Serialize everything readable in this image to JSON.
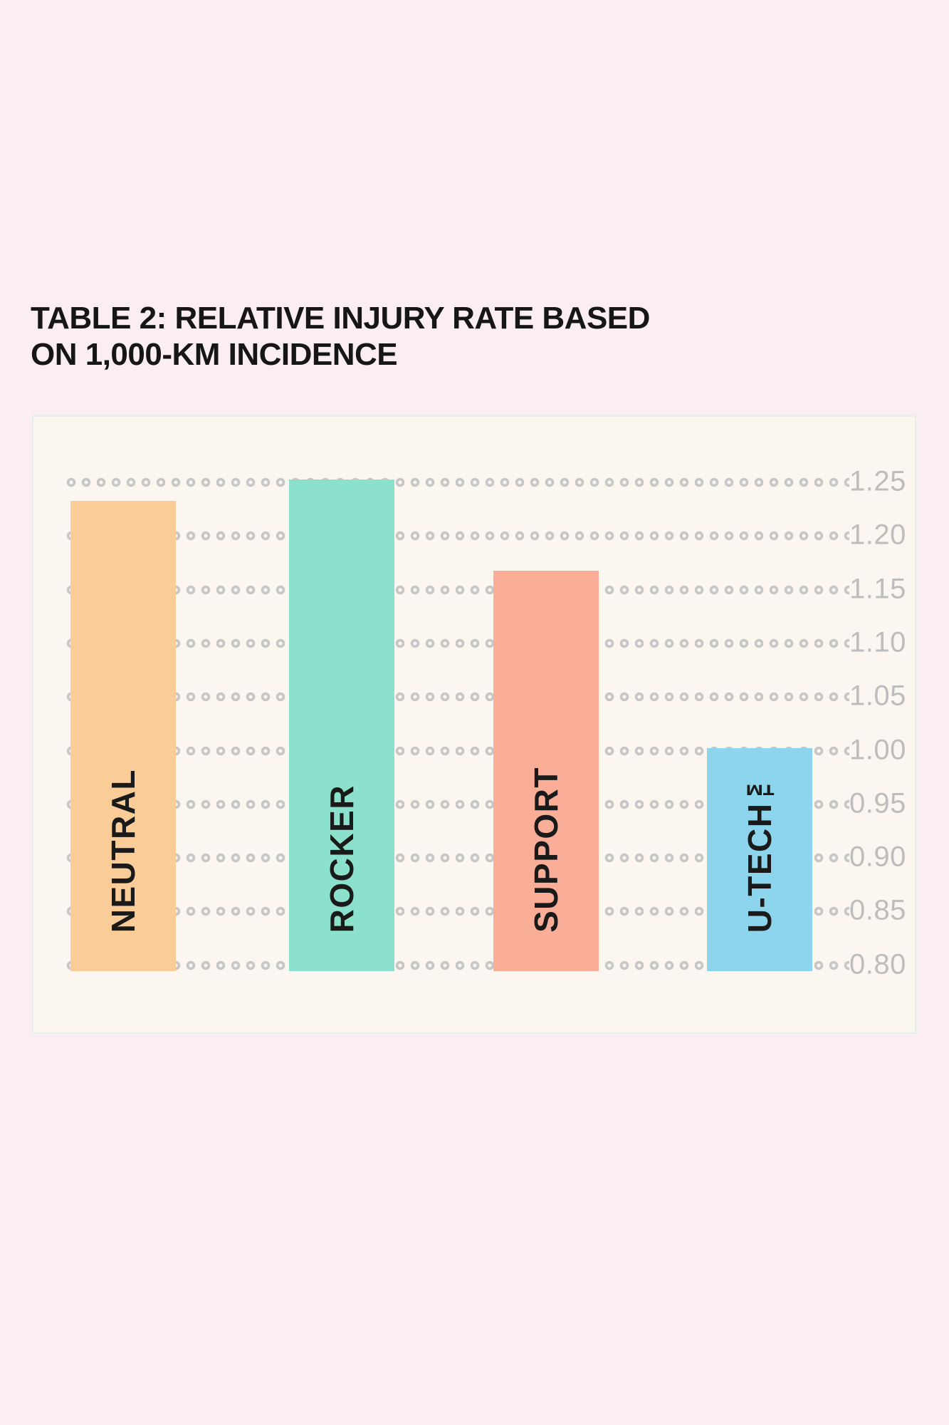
{
  "page": {
    "background_color": "#FBEEF2"
  },
  "title": {
    "line1": "TABLE 2: RELATIVE INJURY RATE BASED",
    "line2": "ON 1,000-KM INCIDENCE",
    "color": "#161616"
  },
  "chart_data": {
    "type": "bar",
    "title": "TABLE 2: RELATIVE INJURY RATE BASED ON 1,000-KM INCIDENCE",
    "categories": [
      "NEUTRAL",
      "ROCKER",
      "SUPPORT",
      "U-TECH™"
    ],
    "values": [
      1.23,
      1.25,
      1.165,
      1.0
    ],
    "bar_colors": [
      "#FACC98",
      "#8BE1CC",
      "#FAAD97",
      "#8DD5EC"
    ],
    "xlabel": "",
    "ylabel": "",
    "ylim": [
      0.8,
      1.25
    ],
    "tick_step": 0.05,
    "yticks": [
      "1.25",
      "1.20",
      "1.15",
      "1.10",
      "1.05",
      "1.00",
      "0.95",
      "0.90",
      "0.85",
      "0.80"
    ],
    "axis_side": "right",
    "grid": "dotted-rings",
    "gridline_color": "#C7C7C7",
    "tick_label_color": "#BDBDBD",
    "panel_background": "#FBF6F0",
    "bar_label_color": "#1A1A1A",
    "bar_label_position": "inside-bottom-rotated-90"
  }
}
